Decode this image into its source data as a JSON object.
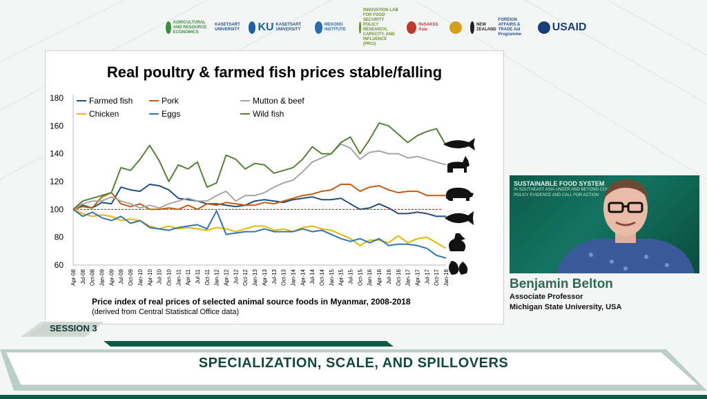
{
  "header_logos": [
    {
      "name": "kasetsart-economics",
      "text": "AGRICULTURAL AND RESOURCE ECONOMICS",
      "sub": "KASETSART UNIVERSITY",
      "color": "#3a8f3a"
    },
    {
      "name": "ku",
      "text": "KU",
      "sub": "KASETSART UNIVERSITY",
      "color": "#1f5fa8"
    },
    {
      "name": "mekong-institute",
      "text": "MEKONG INSTITUTE",
      "sub": "",
      "color": "#2b6cb0"
    },
    {
      "name": "innovation-lab",
      "text": "INNOVATION LAB FOR FOOD SECURITY POLICY RESEARCH, CAPACITY, AND INFLUENCE (PRCI)",
      "sub": "",
      "color": "#6a8f2a"
    },
    {
      "name": "resakss-asia",
      "text": "ReSAKSS Asia",
      "sub": "",
      "color": "#c0392b"
    },
    {
      "name": "seal",
      "text": "",
      "sub": "",
      "color": "#d4a017"
    },
    {
      "name": "new-zealand",
      "text": "NEW ZEALAND",
      "sub": "FOREIGN AFFAIRS & TRADE Aid Programme",
      "color": "#222222"
    },
    {
      "name": "usaid",
      "text": "USAID",
      "sub": "",
      "color": "#1a3d7c"
    }
  ],
  "slide": {
    "title": "Real poultry & farmed fish prices stable/falling",
    "caption": "Price index of real prices of selected animal source foods in Myanmar, 2008-2018",
    "subcaption": "(derived from Central Statistical Office data)"
  },
  "chart_data": {
    "type": "line",
    "ylim": [
      60,
      180
    ],
    "yticks": [
      60,
      80,
      100,
      120,
      140,
      160,
      180
    ],
    "x_labels": [
      "Apr-08",
      "Jul-08",
      "Oct-08",
      "Jan-09",
      "Apr-09",
      "Jul-09",
      "Oct-09",
      "Jan-10",
      "Apr-10",
      "Jul-10",
      "Oct-10",
      "Jan-11",
      "Apr-11",
      "Jul-11",
      "Oct-11",
      "Jan-12",
      "Apr-12",
      "Jul-12",
      "Oct-12",
      "Jan-13",
      "Apr-13",
      "Jul-13",
      "Oct-13",
      "Jan-14",
      "Apr-14",
      "Jul-14",
      "Oct-14",
      "Jan-15",
      "Apr-15",
      "Jul-15",
      "Oct-15",
      "Jan-16",
      "Apr-16",
      "Jul-16",
      "Oct-16",
      "Jan-17",
      "Apr-17",
      "Jul-17",
      "Oct-17",
      "Jan-18"
    ],
    "reference_line": 100,
    "series": [
      {
        "name": "Farmed fish",
        "color": "#1f4e79",
        "values": [
          100,
          103,
          101,
          105,
          104,
          116,
          114,
          113,
          118,
          117,
          114,
          108,
          107,
          106,
          104,
          104,
          103,
          102,
          103,
          106,
          107,
          106,
          105,
          107,
          108,
          109,
          107,
          107,
          108,
          104,
          100,
          101,
          104,
          101,
          97,
          97,
          98,
          97,
          95,
          95
        ]
      },
      {
        "name": "Pork",
        "color": "#c55a11",
        "values": [
          100,
          102,
          101,
          109,
          112,
          104,
          102,
          104,
          100,
          100,
          101,
          100,
          103,
          100,
          104,
          103,
          105,
          104,
          103,
          103,
          105,
          104,
          106,
          108,
          110,
          111,
          113,
          114,
          118,
          118,
          113,
          116,
          117,
          114,
          112,
          113,
          113,
          110,
          110,
          110
        ]
      },
      {
        "name": "Mutton & beef",
        "color": "#a5a5a5",
        "values": [
          100,
          104,
          106,
          106,
          109,
          106,
          104,
          101,
          103,
          101,
          104,
          106,
          108,
          106,
          106,
          110,
          113,
          106,
          110,
          110,
          112,
          116,
          119,
          121,
          127,
          134,
          137,
          140,
          147,
          144,
          136,
          141,
          142,
          140,
          140,
          137,
          138,
          136,
          134,
          132
        ]
      },
      {
        "name": "Chicken",
        "color": "#e6b800",
        "values": [
          100,
          97,
          95,
          96,
          95,
          92,
          93,
          92,
          88,
          86,
          88,
          86,
          87,
          86,
          85,
          87,
          86,
          84,
          86,
          88,
          88,
          85,
          86,
          84,
          87,
          88,
          86,
          85,
          82,
          79,
          74,
          78,
          78,
          76,
          81,
          76,
          79,
          80,
          76,
          72
        ]
      },
      {
        "name": "Eggs",
        "color": "#2e75b6",
        "values": [
          100,
          95,
          98,
          94,
          92,
          95,
          90,
          92,
          87,
          86,
          85,
          87,
          88,
          89,
          86,
          99,
          82,
          83,
          84,
          84,
          86,
          84,
          84,
          84,
          86,
          84,
          85,
          82,
          79,
          77,
          79,
          76,
          79,
          74,
          75,
          75,
          74,
          72,
          67,
          65
        ]
      },
      {
        "name": "Wild fish",
        "color": "#548235",
        "values": [
          100,
          106,
          108,
          110,
          112,
          130,
          128,
          136,
          146,
          135,
          120,
          132,
          129,
          134,
          116,
          119,
          139,
          136,
          129,
          133,
          132,
          126,
          128,
          130,
          136,
          145,
          140,
          140,
          148,
          152,
          140,
          150,
          162,
          160,
          154,
          148,
          153,
          156,
          158,
          146
        ]
      }
    ]
  },
  "speaker": {
    "name": "Benjamin Belton",
    "role": "Associate Professor",
    "org": "Michigan State University, USA",
    "video_line1": "SUSTAINABLE FOOD SYSTEM",
    "video_line2": "IN SOUTHEAST ASIA UNDER AND BEYOND COVID-19:",
    "video_line3": "POLICY EVIDENCE AND CALL FOR ACTION"
  },
  "session": {
    "label": "SESSION 3",
    "title": "SPECIALIZATION, SCALE, AND SPILLOVERS"
  },
  "colors": {
    "accent": "#0f5a48",
    "dark": "#0b3a30"
  }
}
